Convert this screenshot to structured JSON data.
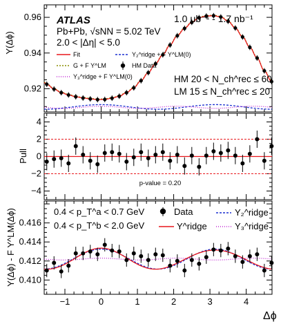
{
  "chart_data": [
    {
      "type": "scatter",
      "panel": "top",
      "ylabel": "Y(Δϕ)",
      "xlim": [
        -1.571,
        4.712
      ],
      "ylim": [
        0.907,
        0.967
      ],
      "yticks": [
        "0.92",
        "0.94",
        "0.96"
      ],
      "atlas_label": "ATLAS",
      "lumi_label": "1.0 μb⁻¹ - 1.7 nb⁻¹",
      "system_label": "Pb+Pb, √sNN = 5.02 TeV",
      "eta_label": "2.0 < |Δη| < 5.0",
      "hm_label": "HM 20 < N_ch^rec ≤ 60",
      "lm_label": "LM 15 ≤ N_ch^rec ≤ 20",
      "legend": {
        "fit": "Fit",
        "y2": "Y₂^ridge + F Y^LM(0)",
        "data": "HM Data",
        "g": "G + F Y^LM",
        "y3": "Y₃^ridge + F Y^LM(0)"
      },
      "x": [
        -1.5,
        -1.3,
        -1.1,
        -0.9,
        -0.7,
        -0.5,
        -0.3,
        -0.1,
        0.1,
        0.3,
        0.5,
        0.7,
        0.9,
        1.1,
        1.3,
        1.5,
        1.7,
        1.9,
        2.1,
        2.3,
        2.5,
        2.7,
        2.9,
        3.1,
        3.3,
        3.5,
        3.7,
        3.9,
        4.1,
        4.3,
        4.5,
        4.7
      ],
      "data_y": [
        0.9225,
        0.9198,
        0.9178,
        0.9165,
        0.9155,
        0.9148,
        0.9143,
        0.9139,
        0.914,
        0.9147,
        0.9158,
        0.9178,
        0.9205,
        0.9245,
        0.929,
        0.934,
        0.939,
        0.9445,
        0.9497,
        0.9538,
        0.9572,
        0.9598,
        0.9607,
        0.9609,
        0.9602,
        0.9578,
        0.954,
        0.949,
        0.9432,
        0.9372,
        0.93,
        0.924
      ]
    },
    {
      "type": "scatter",
      "panel": "middle",
      "ylabel": "Pull",
      "ylim": [
        -5,
        5
      ],
      "yticks": [
        "−4",
        "−2",
        "0",
        "2",
        "4"
      ],
      "pvalue_label": "p-value = 0.20",
      "x": [
        -1.5,
        -1.3,
        -1.1,
        -0.9,
        -0.7,
        -0.5,
        -0.3,
        -0.1,
        0.1,
        0.3,
        0.5,
        0.7,
        0.9,
        1.1,
        1.3,
        1.5,
        1.7,
        1.9,
        2.1,
        2.3,
        2.5,
        2.7,
        2.9,
        3.1,
        3.3,
        3.5,
        3.7,
        3.9,
        4.1,
        4.3,
        4.5,
        4.7
      ],
      "pull": [
        -0.6,
        -0.3,
        -0.2,
        -0.8,
        1.2,
        0.2,
        -0.5,
        -0.9,
        0.4,
        0.5,
        0.3,
        -0.6,
        -0.1,
        0.5,
        -0.2,
        0.2,
        0.5,
        -0.5,
        0.2,
        -1.1,
        0.1,
        -1.2,
        0.1,
        0.6,
        0.4,
        0.7,
        0.1,
        -0.8,
        0.3,
        2.0,
        -0.5,
        1.2
      ]
    },
    {
      "type": "scatter",
      "panel": "bottom",
      "ylabel": "Y(Δϕ) - F Y^LM(Δϕ)",
      "xlabel": "Δϕ",
      "ylim": [
        0.4085,
        0.4183
      ],
      "yticks": [
        "0.410",
        "0.412",
        "0.414",
        "0.416"
      ],
      "xticks": [
        "−1",
        "0",
        "1",
        "2",
        "3",
        "4"
      ],
      "pa_label": "0.4 < p_T^a < 0.7 GeV",
      "pb_label": "0.4 < p_T^b < 2.0 GeV",
      "legend": {
        "data": "Data",
        "yridge": "Y^ridge",
        "y2": "Y₂^ridge",
        "y3": "Y₃^ridge"
      },
      "x": [
        -1.5,
        -1.3,
        -1.1,
        -0.9,
        -0.7,
        -0.5,
        -0.3,
        -0.1,
        0.1,
        0.3,
        0.5,
        0.7,
        0.9,
        1.1,
        1.3,
        1.5,
        1.7,
        1.9,
        2.1,
        2.3,
        2.5,
        2.7,
        2.9,
        3.1,
        3.3,
        3.5,
        3.7,
        3.9,
        4.1,
        4.3,
        4.5,
        4.7
      ],
      "data_y": [
        0.411,
        0.4118,
        0.4109,
        0.4115,
        0.4128,
        0.4128,
        0.413,
        0.4127,
        0.4137,
        0.4131,
        0.413,
        0.4121,
        0.4128,
        0.4125,
        0.4121,
        0.4127,
        0.4126,
        0.4115,
        0.412,
        0.411,
        0.4121,
        0.4117,
        0.4124,
        0.4132,
        0.4131,
        0.4133,
        0.4125,
        0.4119,
        0.4125,
        0.4127,
        0.411,
        0.4118
      ],
      "model": {
        "baseline": 0.4122,
        "v2_amp": 0.00105,
        "v3_amp": 0.0001
      }
    }
  ]
}
